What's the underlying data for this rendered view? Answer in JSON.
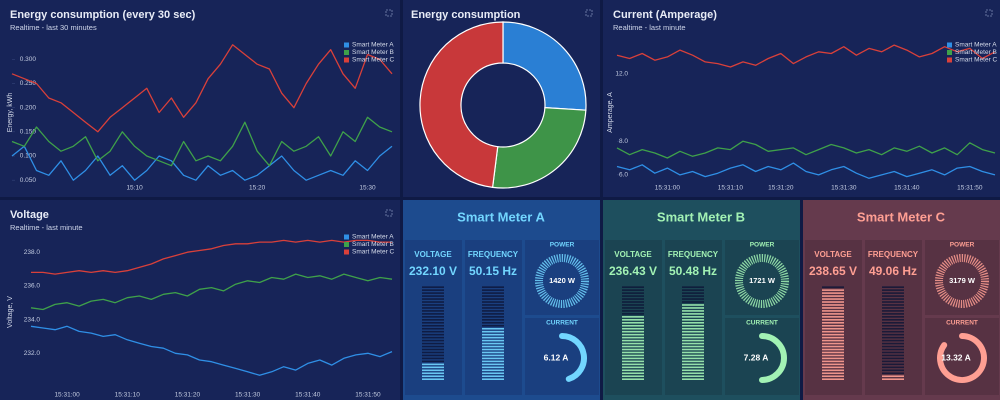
{
  "chart_data": [
    {
      "type": "line",
      "title": "Energy consumption (every 30 sec)",
      "subtitle": "Realtime - last 30 minutes",
      "ylabel": "Energy, kWh",
      "categories": [
        null,
        null,
        null,
        null,
        null,
        null,
        null,
        null,
        null,
        null,
        "15:10",
        null,
        null,
        null,
        null,
        null,
        null,
        null,
        null,
        null,
        "15:20",
        null,
        null,
        null,
        null,
        null,
        null,
        null,
        null,
        "15:30",
        null,
        null
      ],
      "series": [
        {
          "name": "Smart Meter A",
          "color": "#2f8fe6",
          "values": [
            0.1,
            0.12,
            0.07,
            0.06,
            0.09,
            0.05,
            0.07,
            0.1,
            0.06,
            0.08,
            0.05,
            0.07,
            0.1,
            0.09,
            0.06,
            0.05,
            0.08,
            0.06,
            0.07,
            0.05,
            0.06,
            0.08,
            0.1,
            0.07,
            0.05,
            0.06,
            0.07,
            0.06,
            0.09,
            0.07,
            0.1,
            0.12
          ]
        },
        {
          "name": "Smart Meter B",
          "color": "#3fa14a",
          "values": [
            0.13,
            0.12,
            0.16,
            0.13,
            0.11,
            0.12,
            0.14,
            0.09,
            0.11,
            0.15,
            0.12,
            0.1,
            0.09,
            0.08,
            0.13,
            0.09,
            0.1,
            0.09,
            0.12,
            0.17,
            0.11,
            0.08,
            0.13,
            0.11,
            0.12,
            0.14,
            0.1,
            0.15,
            0.13,
            0.18,
            0.16,
            0.15
          ]
        },
        {
          "name": "Smart Meter C",
          "color": "#d9403a",
          "values": [
            0.27,
            0.26,
            0.25,
            0.22,
            0.21,
            0.19,
            0.17,
            0.15,
            0.18,
            0.2,
            0.22,
            0.24,
            0.19,
            0.22,
            0.18,
            0.21,
            0.26,
            0.29,
            0.33,
            0.31,
            0.29,
            0.28,
            0.23,
            0.2,
            0.25,
            0.29,
            0.32,
            0.27,
            0.24,
            0.31,
            0.3,
            0.27
          ]
        }
      ],
      "ylim": [
        0.04,
        0.34
      ],
      "yticks": [
        {
          "value": 0.05,
          "label": "0.050"
        },
        {
          "value": 0.1,
          "label": "0.100"
        },
        {
          "value": 0.15,
          "label": "0.150"
        },
        {
          "value": 0.2,
          "label": "0.200"
        },
        {
          "value": 0.25,
          "label": "0.250"
        },
        {
          "value": 0.3,
          "label": "0.300"
        }
      ],
      "legend": "top-right"
    },
    {
      "type": "pie",
      "title": "Energy consumption",
      "values": [
        26,
        26,
        48
      ],
      "colors": [
        "#2a7fd4",
        "#3e9448",
        "#c8383a"
      ]
    },
    {
      "type": "line",
      "title": "Current (Amperage)",
      "subtitle": "Realtime - last minute",
      "ylabel": "Amperage, A",
      "categories": [
        null,
        null,
        null,
        null,
        "15:31:00",
        null,
        null,
        null,
        null,
        "15:31:10",
        null,
        null,
        null,
        "15:31:20",
        null,
        null,
        null,
        null,
        "15:31:30",
        null,
        null,
        null,
        null,
        "15:31:40",
        null,
        null,
        null,
        null,
        "15:31:50",
        null,
        null
      ],
      "series": [
        {
          "name": "Smart Meter A",
          "color": "#2f8fe6",
          "values": [
            6.5,
            6.3,
            6.6,
            6.1,
            6.4,
            6.0,
            6.2,
            5.9,
            6.1,
            6.4,
            6.6,
            6.2,
            6.5,
            6.3,
            6.7,
            6.2,
            6.0,
            6.3,
            6.5,
            6.1,
            5.8,
            6.0,
            6.2,
            5.9,
            6.1,
            6.3,
            6.0,
            6.4,
            6.5,
            6.2,
            6.0
          ]
        },
        {
          "name": "Smart Meter B",
          "color": "#3fa14a",
          "values": [
            7.6,
            7.2,
            7.5,
            7.3,
            7.0,
            7.4,
            7.1,
            7.3,
            7.6,
            7.5,
            8.0,
            7.8,
            7.4,
            7.5,
            7.6,
            7.2,
            7.5,
            7.8,
            7.6,
            7.3,
            7.5,
            7.2,
            7.6,
            7.4,
            7.7,
            7.3,
            7.6,
            7.2,
            7.9,
            7.5,
            7.3
          ]
        },
        {
          "name": "Smart Meter C",
          "color": "#d9403a",
          "values": [
            13.1,
            12.9,
            13.2,
            12.8,
            13.0,
            13.4,
            13.1,
            12.7,
            12.6,
            12.4,
            12.7,
            12.5,
            12.9,
            13.2,
            12.6,
            13.0,
            13.3,
            13.2,
            13.6,
            13.1,
            13.5,
            13.3,
            13.7,
            13.4,
            13.0,
            13.2,
            13.6,
            13.3,
            13.5,
            12.9,
            13.3
          ]
        }
      ],
      "ylim": [
        5.4,
        14
      ],
      "yticks": [
        {
          "value": 6,
          "label": "6.0"
        },
        {
          "value": 8,
          "label": "8.0"
        },
        {
          "value": 12,
          "label": "12.0"
        }
      ],
      "legend": "top-right"
    },
    {
      "type": "line",
      "title": "Voltage",
      "subtitle": "Realtime - last minute",
      "ylabel": "Voltage, V",
      "categories": [
        null,
        null,
        null,
        "15:31:00",
        null,
        null,
        null,
        null,
        "15:31:10",
        null,
        null,
        null,
        null,
        "15:31:20",
        null,
        null,
        null,
        null,
        "15:31:30",
        null,
        null,
        null,
        null,
        "15:31:40",
        null,
        null,
        null,
        null,
        "15:31:50",
        null,
        null
      ],
      "series": [
        {
          "name": "Smart Meter A",
          "color": "#2f8fe6",
          "values": [
            233.6,
            233.5,
            233.4,
            233.6,
            233.3,
            233.2,
            233.0,
            233.1,
            232.8,
            232.6,
            232.4,
            232.3,
            232.0,
            231.9,
            231.6,
            231.5,
            231.3,
            231.1,
            230.9,
            230.7,
            230.9,
            231.2,
            231.0,
            231.4,
            231.6,
            231.3,
            231.7,
            231.9,
            232.0,
            231.8,
            232.1
          ]
        },
        {
          "name": "Smart Meter B",
          "color": "#3fa14a",
          "values": [
            234.7,
            234.6,
            234.9,
            235.0,
            234.8,
            235.1,
            235.2,
            235.0,
            235.3,
            235.4,
            235.2,
            235.5,
            235.6,
            235.4,
            235.8,
            235.9,
            235.7,
            236.1,
            236.3,
            236.2,
            236.5,
            236.4,
            236.7,
            236.5,
            236.6,
            236.4,
            236.7,
            236.5,
            236.3,
            236.5,
            236.4
          ]
        },
        {
          "name": "Smart Meter C",
          "color": "#d9403a",
          "values": [
            236.8,
            236.8,
            236.7,
            236.8,
            236.9,
            236.8,
            236.9,
            236.8,
            236.9,
            237.1,
            237.3,
            237.6,
            237.8,
            238.0,
            238.1,
            238.2,
            238.4,
            238.5,
            238.5,
            238.6,
            238.6,
            238.7,
            238.6,
            238.7,
            238.6,
            238.7,
            238.6,
            238.7,
            238.7,
            238.6,
            238.6
          ]
        }
      ],
      "ylim": [
        229.7,
        239.2
      ],
      "yticks": [
        {
          "value": 232,
          "label": "232.0"
        },
        {
          "value": 234,
          "label": "234.0"
        },
        {
          "value": 236,
          "label": "236.0"
        },
        {
          "value": 238,
          "label": "238.0"
        }
      ],
      "legend": "top-right"
    }
  ],
  "meters": [
    {
      "title": "Smart Meter A",
      "voltage_label": "VOLTAGE",
      "voltage": "232.10 V",
      "frequency_label": "FREQUENCY",
      "frequency": "50.15 Hz",
      "power_label": "POWER",
      "power": "1420 W",
      "current_label": "CURRENT",
      "current": "6.12 A"
    },
    {
      "title": "Smart Meter B",
      "voltage_label": "VOLTAGE",
      "voltage": "236.43 V",
      "frequency_label": "FREQUENCY",
      "frequency": "50.48 Hz",
      "power_label": "POWER",
      "power": "1721 W",
      "current_label": "CURRENT",
      "current": "7.28 A"
    },
    {
      "title": "Smart Meter C",
      "voltage_label": "VOLTAGE",
      "voltage": "238.65 V",
      "frequency_label": "FREQUENCY",
      "frequency": "49.06 Hz",
      "power_label": "POWER",
      "power": "3179 W",
      "current_label": "CURRENT",
      "current": "13.32 A"
    }
  ]
}
